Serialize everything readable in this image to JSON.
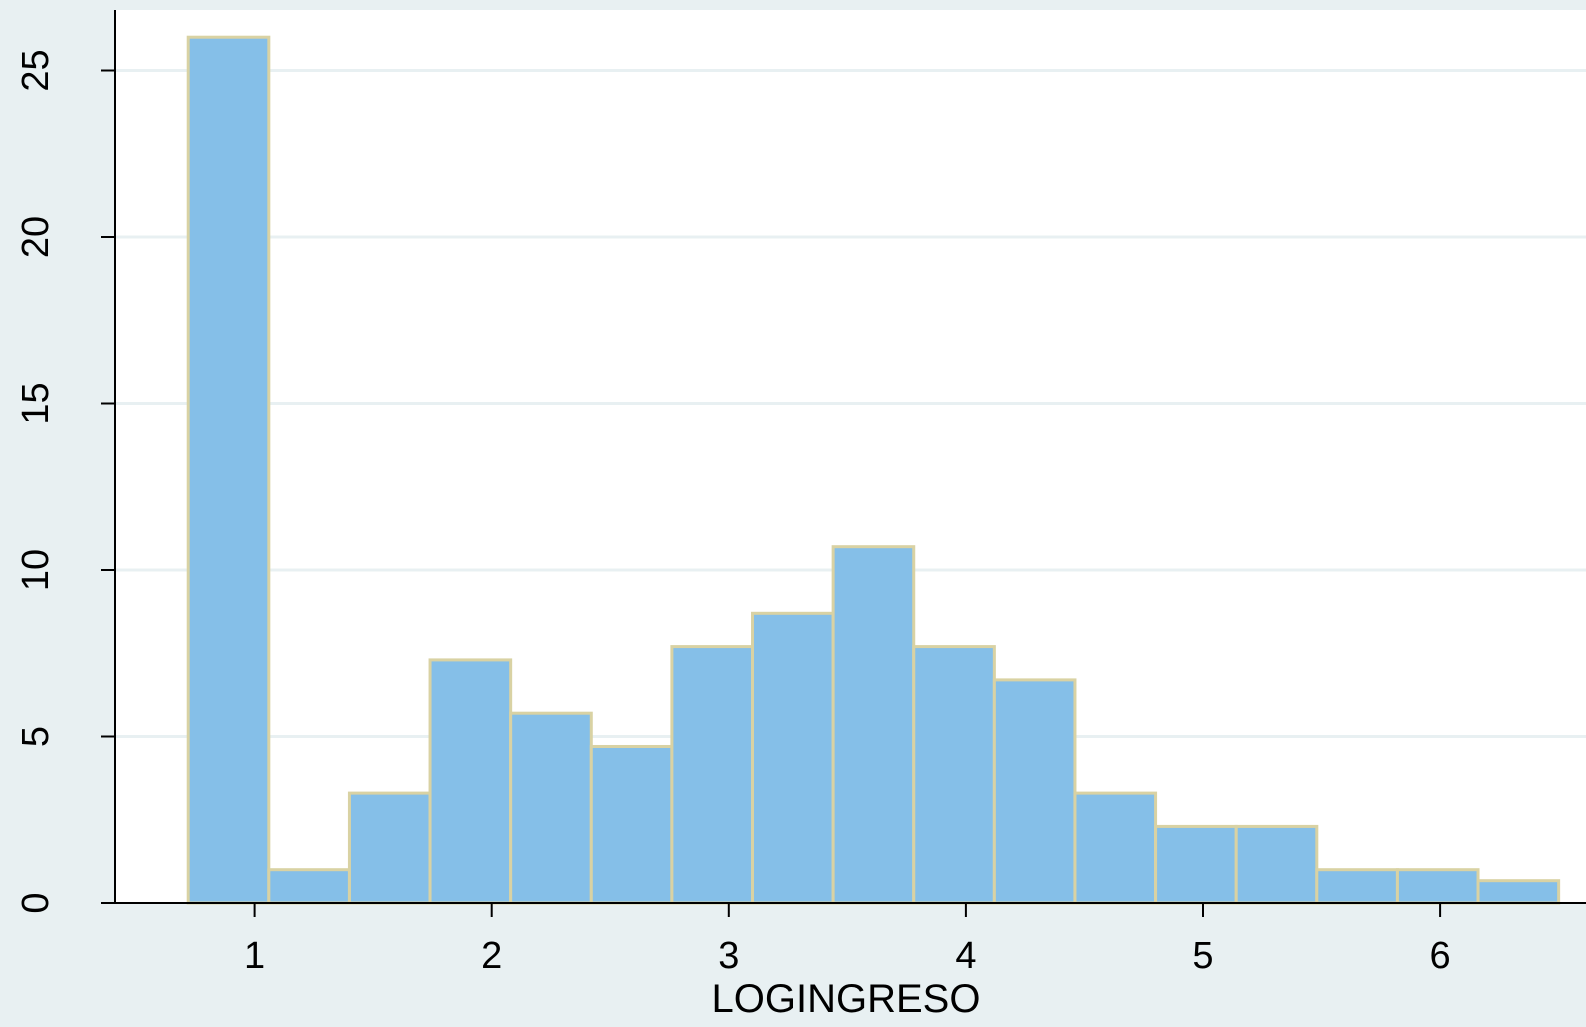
{
  "chart_data": {
    "type": "bar",
    "subtype": "histogram",
    "title": "",
    "xlabel": "LOGINGRESO",
    "ylabel": "",
    "xlim": [
      0.7,
      6.5
    ],
    "ylim": [
      0,
      26.5
    ],
    "x_ticks": [
      1,
      2,
      3,
      4,
      5,
      6
    ],
    "y_ticks": [
      0,
      5,
      10,
      15,
      20,
      25
    ],
    "grid": true,
    "bin_edges": [
      0.72,
      1.06,
      1.4,
      1.74,
      2.08,
      2.42,
      2.76,
      3.1,
      3.44,
      3.78,
      4.12,
      4.46,
      4.8,
      5.14,
      5.48,
      5.82,
      6.16,
      6.5
    ],
    "values": [
      26,
      1,
      3.3,
      7.3,
      5.7,
      4.7,
      7.7,
      8.7,
      10.7,
      7.7,
      6.7,
      3.3,
      2.3,
      2.3,
      1,
      1,
      0.67
    ],
    "colors": {
      "bar_fill": "#85bfe8",
      "bar_edge": "#d9d2a3",
      "plot_background": "#ffffff",
      "outer_background": "#e8f0f2",
      "gridline": "#e8f0f2",
      "axis": "#000000"
    }
  }
}
